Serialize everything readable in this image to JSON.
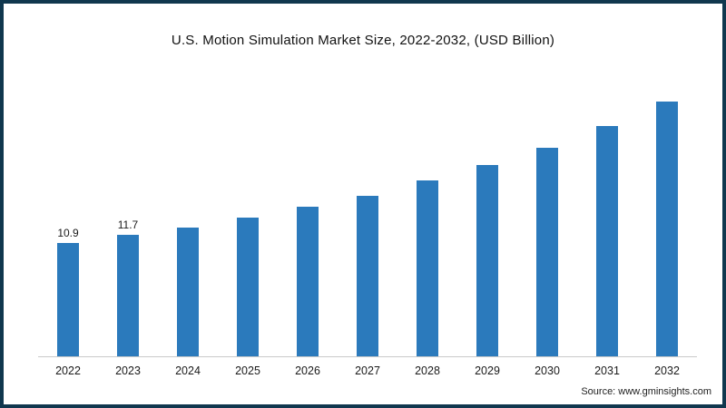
{
  "title": "U.S. Motion Simulation Market Size, 2022-2032, (USD Billion)",
  "source": "Source: www.gminsights.com",
  "chart_data": {
    "type": "bar",
    "title": "U.S. Motion Simulation Market Size, 2022-2032, (USD Billion)",
    "categories": [
      "2022",
      "2023",
      "2024",
      "2025",
      "2026",
      "2027",
      "2028",
      "2029",
      "2030",
      "2031",
      "2032"
    ],
    "values": [
      10.9,
      11.7,
      12.4,
      13.4,
      14.4,
      15.5,
      16.9,
      18.4,
      20.1,
      22.2,
      24.5
    ],
    "data_labels": [
      "10.9",
      "11.7",
      "",
      "",
      "",
      "",
      "",
      "",
      "",
      "",
      ""
    ],
    "xlabel": "",
    "ylabel": "",
    "ylim": [
      0,
      26
    ],
    "grid": false,
    "legend": "none",
    "bar_color": "#2b7abc"
  }
}
